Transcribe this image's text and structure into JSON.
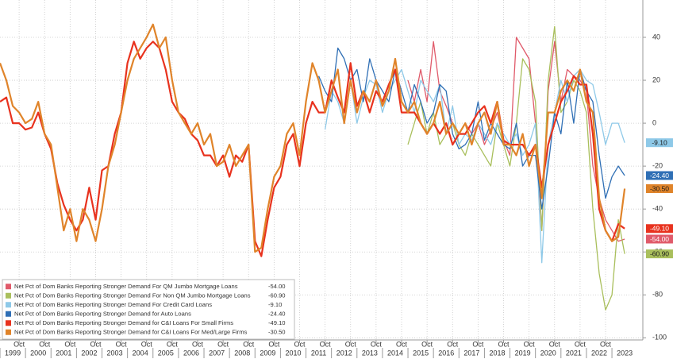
{
  "chart_data": {
    "type": "line",
    "x": [
      1999,
      1999.25,
      1999.5,
      1999.75,
      2000,
      2000.25,
      2000.5,
      2000.75,
      2001,
      2001.25,
      2001.5,
      2001.75,
      2002,
      2002.25,
      2002.5,
      2002.75,
      2003,
      2003.25,
      2003.5,
      2003.75,
      2004,
      2004.25,
      2004.5,
      2004.75,
      2005,
      2005.25,
      2005.5,
      2005.75,
      2006,
      2006.25,
      2006.5,
      2006.75,
      2007,
      2007.25,
      2007.5,
      2007.75,
      2008,
      2008.25,
      2008.5,
      2008.75,
      2009,
      2009.25,
      2009.5,
      2009.75,
      2010,
      2010.25,
      2010.5,
      2010.75,
      2011,
      2011.25,
      2011.5,
      2011.75,
      2012,
      2012.25,
      2012.5,
      2012.75,
      2013,
      2013.25,
      2013.5,
      2013.75,
      2014,
      2014.25,
      2014.5,
      2014.75,
      2015,
      2015.25,
      2015.5,
      2015.75,
      2016,
      2016.25,
      2016.5,
      2016.75,
      2017,
      2017.25,
      2017.5,
      2017.75,
      2018,
      2018.25,
      2018.5,
      2018.75,
      2019,
      2019.25,
      2019.5,
      2019.75,
      2020,
      2020.25,
      2020.5,
      2020.75,
      2021,
      2021.25,
      2021.5,
      2021.75,
      2022,
      2022.25,
      2022.5,
      2022.75,
      2023,
      2023.25,
      2023.5
    ],
    "series": [
      {
        "name": "Net Pct of Dom Banks Reporting Stronger Demand For QM Jumbo Mortgage Loans",
        "color": "#e05a6a",
        "label_text": "#ffffff",
        "last_value_label": "-54.00",
        "values": [
          null,
          null,
          null,
          null,
          null,
          null,
          null,
          null,
          null,
          null,
          null,
          null,
          null,
          null,
          null,
          null,
          null,
          null,
          null,
          null,
          null,
          null,
          null,
          null,
          null,
          null,
          null,
          null,
          null,
          null,
          null,
          null,
          null,
          null,
          null,
          null,
          null,
          null,
          null,
          null,
          null,
          null,
          null,
          null,
          null,
          null,
          null,
          null,
          null,
          null,
          null,
          null,
          null,
          null,
          null,
          null,
          null,
          null,
          null,
          null,
          null,
          null,
          null,
          null,
          20,
          10,
          25,
          10,
          38,
          15,
          8,
          0,
          -5,
          0,
          -5,
          0,
          -10,
          -3,
          5,
          -8,
          -15,
          40,
          35,
          30,
          0,
          -50,
          15,
          38,
          10,
          25,
          22,
          20,
          15,
          -20,
          -35,
          -45,
          -50,
          -55,
          -54
        ]
      },
      {
        "name": "Net Pct of Dom Banks Reporting Stronger Demand For Non QM Jumbo Mortgage Loans",
        "color": "#a9bf5c",
        "label_text": "#1a1a1a",
        "last_value_label": "-60.90",
        "values": [
          null,
          null,
          null,
          null,
          null,
          null,
          null,
          null,
          null,
          null,
          null,
          null,
          null,
          null,
          null,
          null,
          null,
          null,
          null,
          null,
          null,
          null,
          null,
          null,
          null,
          null,
          null,
          null,
          null,
          null,
          null,
          null,
          null,
          null,
          null,
          null,
          null,
          null,
          null,
          null,
          null,
          null,
          null,
          null,
          null,
          null,
          null,
          null,
          null,
          null,
          null,
          null,
          null,
          null,
          null,
          null,
          null,
          null,
          null,
          null,
          null,
          null,
          null,
          null,
          -10,
          0,
          10,
          -5,
          5,
          -10,
          -5,
          0,
          -10,
          -15,
          -5,
          -10,
          -15,
          -20,
          0,
          -10,
          -20,
          0,
          30,
          25,
          10,
          -50,
          20,
          45,
          5,
          10,
          20,
          15,
          5,
          -40,
          -70,
          -87,
          -80,
          -45,
          -60.9
        ]
      },
      {
        "name": "Net Pct of Dom Banks Reporting Stronger Demand For Credit Card Loans",
        "color": "#8ec9e8",
        "label_text": "#1a1a1a",
        "last_value_label": "-9.10",
        "values": [
          null,
          null,
          null,
          null,
          null,
          null,
          null,
          null,
          null,
          null,
          null,
          null,
          null,
          null,
          null,
          null,
          null,
          null,
          null,
          null,
          null,
          null,
          null,
          null,
          null,
          null,
          null,
          null,
          null,
          null,
          null,
          null,
          null,
          null,
          null,
          null,
          null,
          null,
          null,
          null,
          null,
          null,
          null,
          null,
          null,
          null,
          null,
          null,
          null,
          null,
          null,
          -3,
          15,
          10,
          0,
          20,
          0,
          12,
          20,
          18,
          5,
          15,
          20,
          25,
          15,
          5,
          20,
          15,
          10,
          18,
          -5,
          8,
          -10,
          -5,
          -8,
          0,
          -5,
          -10,
          0,
          -5,
          -10,
          -5,
          -15,
          -10,
          0,
          -65,
          -10,
          5,
          20,
          10,
          22,
          25,
          20,
          18,
          5,
          -10,
          0,
          0,
          -9.1
        ]
      },
      {
        "name": "Net Pct of Dom Banks Reporting Stronger Demand for Auto Loans",
        "color": "#2f6fb5",
        "label_text": "#ffffff",
        "last_value_label": "-24.40",
        "values": [
          null,
          null,
          null,
          null,
          null,
          null,
          null,
          null,
          null,
          null,
          null,
          null,
          null,
          null,
          null,
          null,
          null,
          null,
          null,
          null,
          null,
          null,
          null,
          null,
          null,
          null,
          null,
          null,
          null,
          null,
          null,
          null,
          null,
          null,
          null,
          null,
          null,
          null,
          null,
          null,
          null,
          null,
          null,
          null,
          null,
          null,
          null,
          null,
          null,
          null,
          22,
          15,
          10,
          35,
          30,
          20,
          25,
          10,
          30,
          20,
          15,
          10,
          25,
          15,
          5,
          18,
          10,
          0,
          5,
          18,
          15,
          -5,
          -12,
          -10,
          -5,
          10,
          -8,
          0,
          -5,
          -10,
          -12,
          0,
          -20,
          -15,
          -15,
          -40,
          -20,
          5,
          -5,
          20,
          0,
          25,
          15,
          10,
          -15,
          -35,
          -25,
          -20,
          -24.4
        ]
      },
      {
        "name": "Net Pct of Dom Banks Reporting Stronger Demand for C&I Loans For Small Firms",
        "color": "#e8321e",
        "label_text": "#ffffff",
        "last_value_label": "-49.10",
        "values": [
          10,
          12,
          0,
          0,
          -3,
          -2,
          5,
          -5,
          -12,
          -28,
          -38,
          -45,
          -50,
          -45,
          -30,
          -45,
          -22,
          -20,
          -5,
          5,
          28,
          38,
          30,
          35,
          38,
          35,
          25,
          10,
          5,
          2,
          -5,
          -8,
          -15,
          -15,
          -20,
          -15,
          -25,
          -15,
          -18,
          -10,
          -55,
          -62,
          -45,
          -30,
          -25,
          -10,
          -5,
          -20,
          0,
          10,
          5,
          5,
          20,
          12,
          5,
          28,
          8,
          15,
          5,
          15,
          10,
          18,
          25,
          5,
          5,
          5,
          0,
          -5,
          0,
          -5,
          0,
          -10,
          -5,
          -5,
          0,
          5,
          8,
          0,
          10,
          -8,
          -10,
          -10,
          -10,
          -15,
          -10,
          -30,
          -10,
          0,
          10,
          15,
          22,
          18,
          18,
          -5,
          -40,
          -50,
          -55,
          -47,
          -49.1
        ]
      },
      {
        "name": "Net Pct of Dom Banks Reporting Stronger Demand for C&I Loans For Med/Large Firms",
        "color": "#e0842a",
        "label_text": "#1a1a1a",
        "last_value_label": "-30.50",
        "values": [
          28,
          20,
          8,
          5,
          0,
          2,
          10,
          -5,
          -10,
          -30,
          -50,
          -40,
          -55,
          -40,
          -45,
          -55,
          -40,
          -20,
          -10,
          5,
          20,
          30,
          35,
          40,
          46,
          35,
          40,
          20,
          5,
          0,
          -5,
          0,
          -10,
          -5,
          -20,
          -18,
          -10,
          -20,
          -15,
          -10,
          -60,
          -58,
          -40,
          -25,
          -20,
          -5,
          0,
          -15,
          10,
          28,
          20,
          5,
          15,
          25,
          0,
          20,
          5,
          15,
          10,
          20,
          8,
          15,
          30,
          10,
          5,
          10,
          0,
          -5,
          0,
          10,
          -5,
          0,
          -5,
          0,
          -10,
          0,
          5,
          -5,
          10,
          -10,
          -10,
          -15,
          -5,
          -20,
          -10,
          -35,
          5,
          5,
          15,
          20,
          15,
          25,
          10,
          5,
          -35,
          -50,
          -55,
          -53,
          -30.5
        ]
      }
    ],
    "xlim": [
      1999,
      2024.15
    ],
    "xticks": [
      {
        "value": 1999.5,
        "label": "1999"
      },
      {
        "value": 2000.5,
        "label": "2000"
      },
      {
        "value": 2001.5,
        "label": "2001"
      },
      {
        "value": 2002.5,
        "label": "2002"
      },
      {
        "value": 2003.5,
        "label": "2003"
      },
      {
        "value": 2004.5,
        "label": "2004"
      },
      {
        "value": 2005.5,
        "label": "2005"
      },
      {
        "value": 2006.5,
        "label": "2006"
      },
      {
        "value": 2007.5,
        "label": "2007"
      },
      {
        "value": 2008.5,
        "label": "2008"
      },
      {
        "value": 2009.5,
        "label": "2009"
      },
      {
        "value": 2010.5,
        "label": "2010"
      },
      {
        "value": 2011.5,
        "label": "2011"
      },
      {
        "value": 2012.5,
        "label": "2012"
      },
      {
        "value": 2013.5,
        "label": "2013"
      },
      {
        "value": 2014.5,
        "label": "2014"
      },
      {
        "value": 2015.5,
        "label": "2015"
      },
      {
        "value": 2016.5,
        "label": "2016"
      },
      {
        "value": 2017.5,
        "label": "2017"
      },
      {
        "value": 2018.5,
        "label": "2018"
      },
      {
        "value": 2019.5,
        "label": "2019"
      },
      {
        "value": 2020.5,
        "label": "2020"
      },
      {
        "value": 2021.5,
        "label": "2021"
      },
      {
        "value": 2022.5,
        "label": "2022"
      },
      {
        "value": 2023.5,
        "label": "2023"
      }
    ],
    "x_minor_ticks": [
      {
        "value": 1999.75,
        "label": "Oct"
      },
      {
        "value": 2000.75,
        "label": "Oct"
      },
      {
        "value": 2001.75,
        "label": "Oct"
      },
      {
        "value": 2002.75,
        "label": "Oct"
      },
      {
        "value": 2003.75,
        "label": "Oct"
      },
      {
        "value": 2004.75,
        "label": "Oct"
      },
      {
        "value": 2005.75,
        "label": "Oct"
      },
      {
        "value": 2006.75,
        "label": "Oct"
      },
      {
        "value": 2007.75,
        "label": "Oct"
      },
      {
        "value": 2008.75,
        "label": "Oct"
      },
      {
        "value": 2009.75,
        "label": "Oct"
      },
      {
        "value": 2010.75,
        "label": "Oct"
      },
      {
        "value": 2011.75,
        "label": "Oct"
      },
      {
        "value": 2012.75,
        "label": "Oct"
      },
      {
        "value": 2013.75,
        "label": "Oct"
      },
      {
        "value": 2014.75,
        "label": "Oct"
      },
      {
        "value": 2015.75,
        "label": "Oct"
      },
      {
        "value": 2016.75,
        "label": "Oct"
      },
      {
        "value": 2017.75,
        "label": "Oct"
      },
      {
        "value": 2018.75,
        "label": "Oct"
      },
      {
        "value": 2019.75,
        "label": "Oct"
      },
      {
        "value": 2020.75,
        "label": "Oct"
      },
      {
        "value": 2021.75,
        "label": "Oct"
      },
      {
        "value": 2022.75,
        "label": "Oct"
      }
    ],
    "ylim": [
      -101,
      57.4
    ],
    "yticks": [
      40,
      20,
      0,
      -20,
      -40,
      -60,
      -80,
      -100
    ],
    "grid": true
  }
}
